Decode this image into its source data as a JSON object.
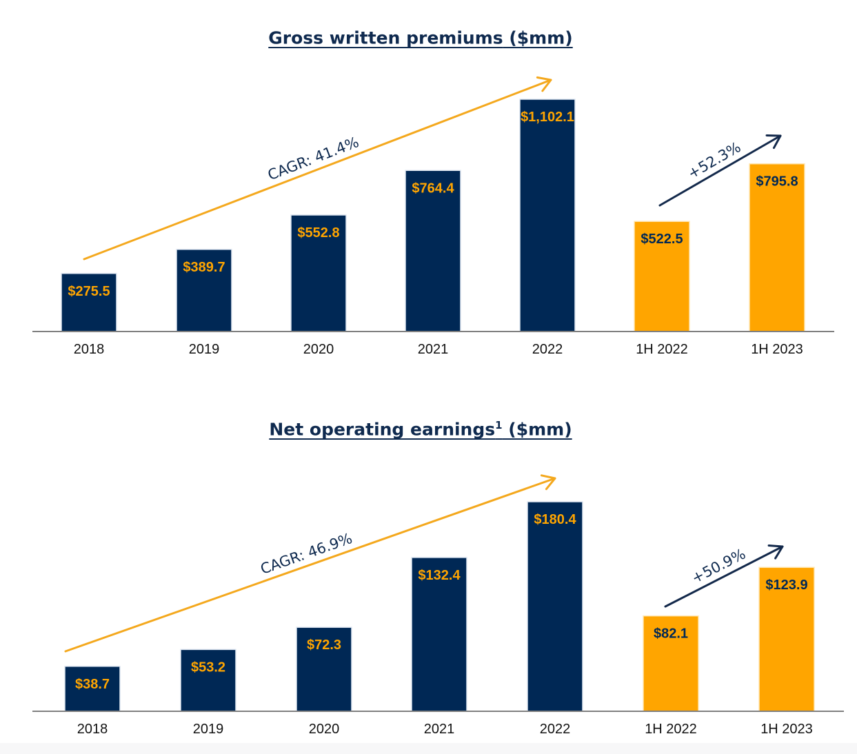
{
  "colors": {
    "navy": "#002855",
    "gold": "#ffa500",
    "axis": "#7f7f7f",
    "cagr_arrow": "#f4a81d",
    "growth_arrow": "#13294b"
  },
  "chart_data": [
    {
      "type": "bar",
      "title": "Gross written premiums ($mm)",
      "title_main": "Gross written premiums",
      "title_sup": "",
      "title_unit": " ($mm)",
      "categories": [
        "2018",
        "2019",
        "2020",
        "2021",
        "2022",
        "1H 2022",
        "1H 2023"
      ],
      "values": [
        275.5,
        389.7,
        552.8,
        764.4,
        1102.1,
        522.5,
        795.8
      ],
      "value_labels": [
        "$275.5",
        "$389.7",
        "$552.8",
        "$764.4",
        "$1,102.1",
        "$522.5",
        "$795.8"
      ],
      "bar_colors": [
        "navy",
        "navy",
        "navy",
        "navy",
        "navy",
        "gold",
        "gold"
      ],
      "cagr_label": "CAGR: 41.4%",
      "growth_label": "+52.3%",
      "ylim": [
        0,
        1200
      ],
      "grid": false
    },
    {
      "type": "bar",
      "title": "Net operating earnings1 ($mm)",
      "title_main": "Net operating earnings",
      "title_sup": "1",
      "title_unit": " ($mm)",
      "categories": [
        "2018",
        "2019",
        "2020",
        "2021",
        "2022",
        "1H 2022",
        "1H 2023"
      ],
      "values": [
        38.7,
        53.2,
        72.3,
        132.4,
        180.4,
        82.1,
        123.9
      ],
      "value_labels": [
        "$38.7",
        "$53.2",
        "$72.3",
        "$132.4",
        "$180.4",
        "$82.1",
        "$123.9"
      ],
      "bar_colors": [
        "navy",
        "navy",
        "navy",
        "navy",
        "navy",
        "gold",
        "gold"
      ],
      "cagr_label": "CAGR: 46.9%",
      "growth_label": "+50.9%",
      "ylim": [
        0,
        200
      ],
      "grid": false
    }
  ]
}
